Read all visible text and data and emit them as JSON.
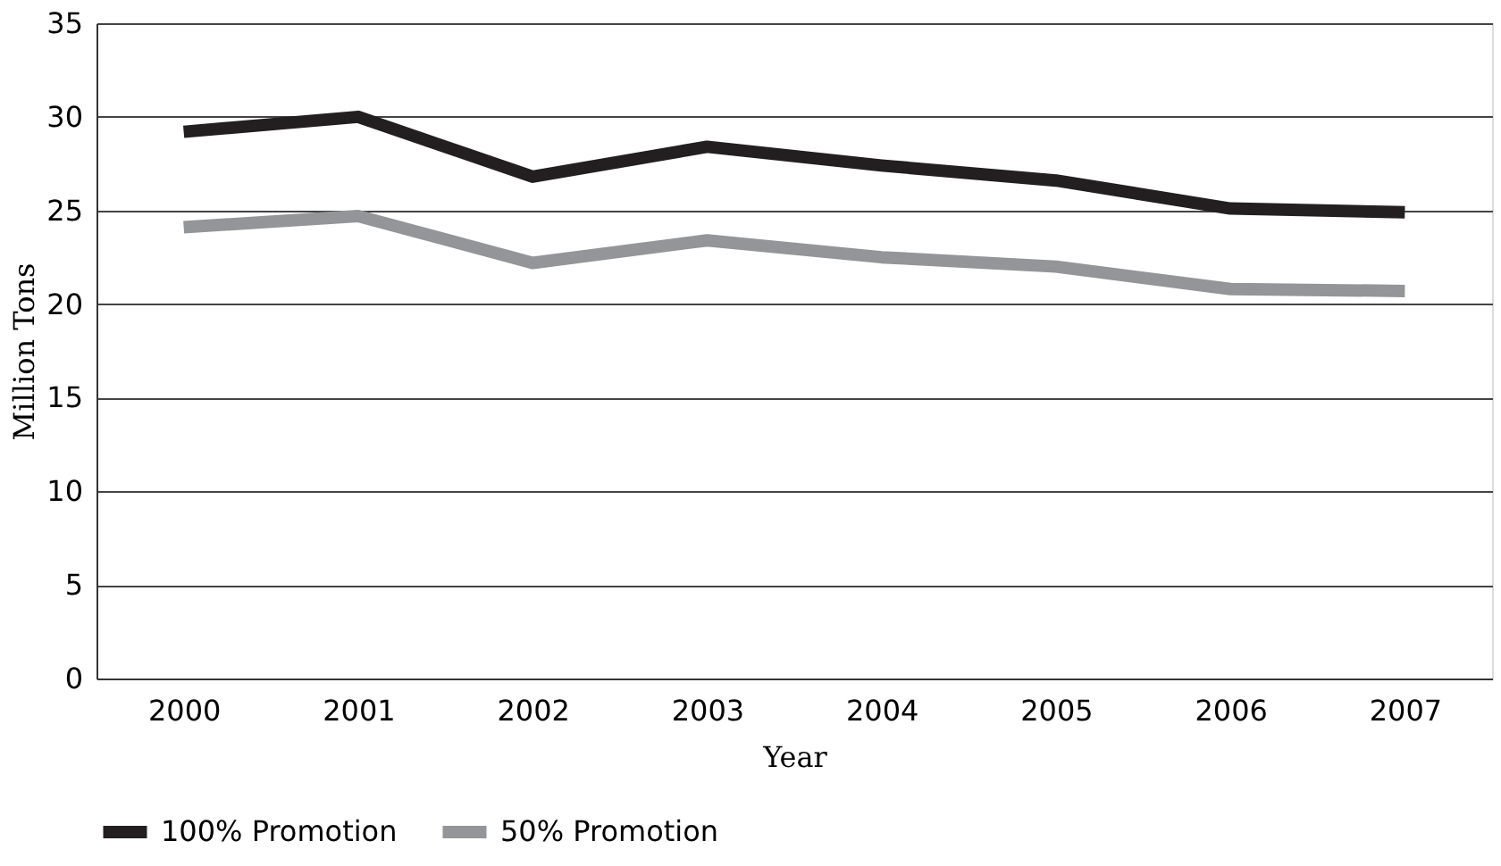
{
  "chart_data": {
    "type": "line",
    "xlabel": "Year",
    "ylabel": "Million Tons",
    "categories": [
      "2000",
      "2001",
      "2002",
      "2003",
      "2004",
      "2005",
      "2006",
      "2007"
    ],
    "series": [
      {
        "name": "100% Promotion",
        "color": "#231f20",
        "values": [
          29.2,
          30.0,
          26.8,
          28.4,
          27.4,
          26.6,
          25.1,
          24.9
        ]
      },
      {
        "name": "50% Promotion",
        "color": "#939598",
        "values": [
          24.1,
          24.7,
          22.2,
          23.4,
          22.5,
          22.0,
          20.8,
          20.7
        ]
      }
    ],
    "ylim": [
      0,
      35
    ],
    "yticks": [
      0,
      5,
      10,
      15,
      20,
      25,
      30,
      35
    ],
    "grid": "y",
    "legend": "bottom",
    "marker": "none",
    "line_style": "solid"
  }
}
